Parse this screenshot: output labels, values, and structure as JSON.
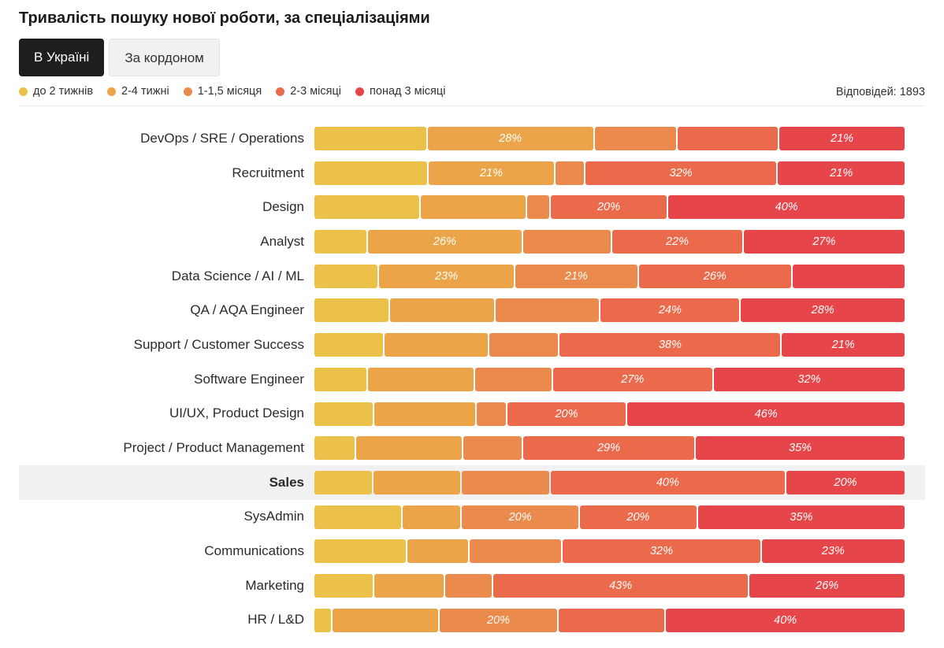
{
  "title": "Тривалість пошуку нової роботи, за спеціалізаціями",
  "tabs": [
    {
      "label": "В Україні",
      "active": true
    },
    {
      "label": "За кордоном",
      "active": false
    }
  ],
  "responses_label": "Відповідей: 1893",
  "colors": [
    "#ecc14a",
    "#eba447",
    "#ea8a4c",
    "#ea6a4b",
    "#e6454a"
  ],
  "chart_data": {
    "type": "bar",
    "orientation": "horizontal",
    "stacked": true,
    "normalized": true,
    "title": "Тривалість пошуку нової роботи, за спеціалізаціями",
    "series_names": [
      "до 2 тижнів",
      "2-4 тижні",
      "1-1,5 місяця",
      "2-3 місяці",
      "понад 3 місяці"
    ],
    "label_threshold": 20,
    "highlighted_category": "Sales",
    "categories": [
      "DevOps / SRE / Operations",
      "Recruitment",
      "Design",
      "Analyst",
      "Data Science / AI / ML",
      "QA / AQA Engineer",
      "Support / Customer Success",
      "Software Engineer",
      "UI/UX, Product Design",
      "Project / Product Management",
      "Sales",
      "SysAdmin",
      "Communications",
      "Marketing",
      "HR / L&D"
    ],
    "values": [
      [
        19,
        28,
        14,
        17,
        21
      ],
      [
        19,
        21,
        5,
        32,
        21
      ],
      [
        18,
        18,
        4,
        20,
        40
      ],
      [
        9,
        26,
        15,
        22,
        27
      ],
      [
        11,
        23,
        21,
        26,
        19
      ],
      [
        13,
        18,
        18,
        24,
        28
      ],
      [
        12,
        18,
        12,
        38,
        21
      ],
      [
        9,
        18,
        13,
        27,
        32
      ],
      [
        10,
        17,
        5,
        20,
        46
      ],
      [
        7,
        18,
        10,
        29,
        35
      ],
      [
        10,
        15,
        15,
        40,
        20
      ],
      [
        15,
        10,
        20,
        20,
        35
      ],
      [
        15,
        10,
        15,
        32,
        23
      ],
      [
        10,
        12,
        8,
        43,
        26
      ],
      [
        3,
        18,
        20,
        18,
        40
      ]
    ]
  }
}
